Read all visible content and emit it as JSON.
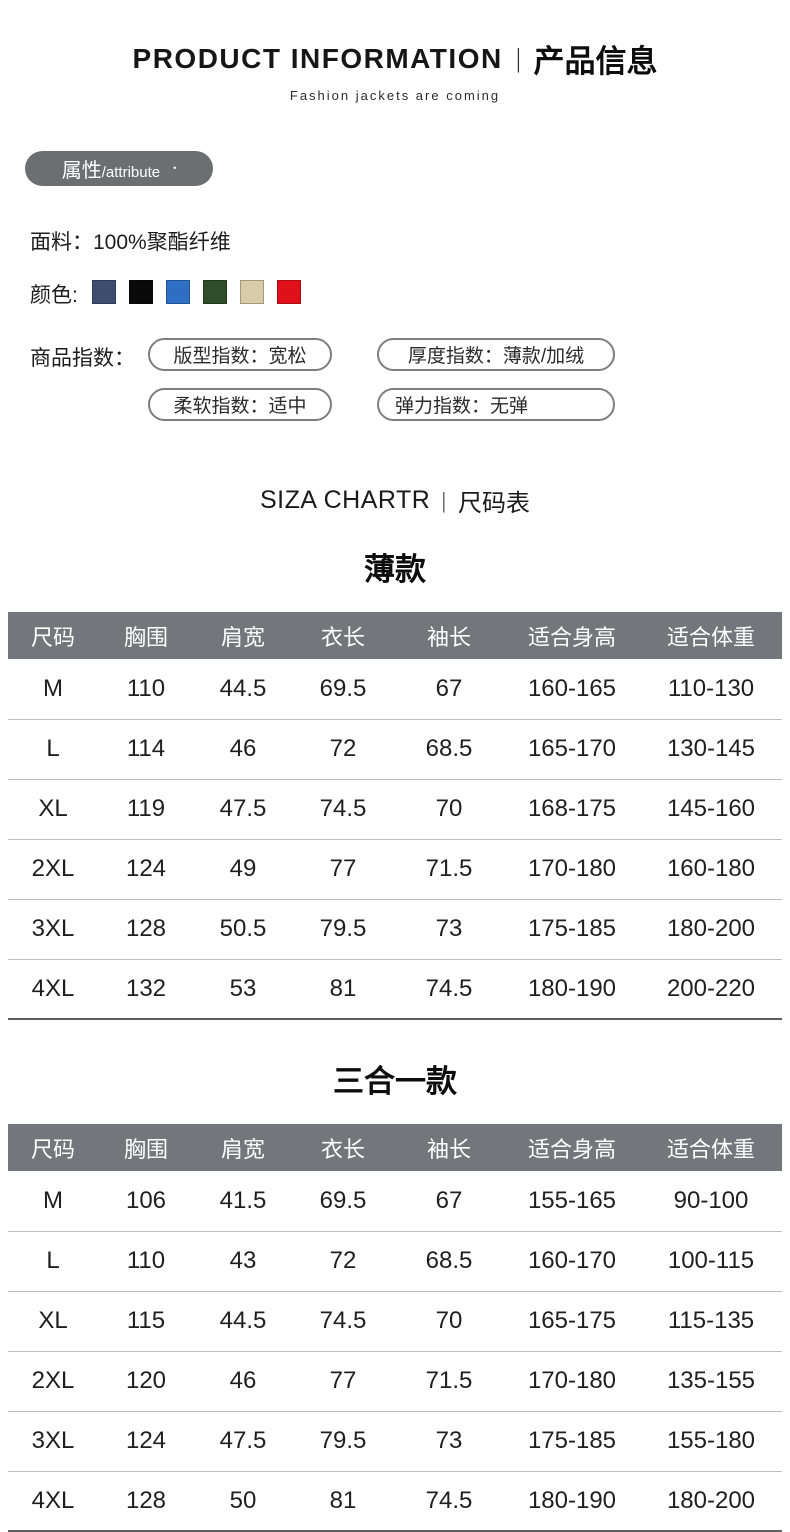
{
  "header": {
    "title_en": "PRODUCT INFORMATION",
    "divider": "|",
    "title_zh": "产品信息",
    "subtitle": "Fashion jackets are coming"
  },
  "attribute_badge": {
    "label_zh": "属性",
    "label_en": "/attribute",
    "dot": "•"
  },
  "fabric": {
    "label": "面料：",
    "value": "100%聚酯纤维"
  },
  "colors": {
    "label": "颜色:",
    "swatches": [
      {
        "name": "navy",
        "hex": "#3e4c70"
      },
      {
        "name": "black",
        "hex": "#0a0a0a"
      },
      {
        "name": "blue",
        "hex": "#2e6fc4"
      },
      {
        "name": "dark-green",
        "hex": "#2e4d28"
      },
      {
        "name": "beige",
        "hex": "#d9cca8"
      },
      {
        "name": "red",
        "hex": "#e0111b"
      }
    ]
  },
  "product_index": {
    "label": "商品指数：",
    "pills": [
      "版型指数：宽松",
      "厚度指数：薄款/加绒",
      "柔软指数：适中",
      "弹力指数：无弹"
    ]
  },
  "size_chart_heading": {
    "title_en": "SIZA CHARTR",
    "divider": "|",
    "title_zh": "尺码表"
  },
  "tables": [
    {
      "title": "薄款",
      "headers": [
        "尺码",
        "胸围",
        "肩宽",
        "衣长",
        "袖长",
        "适合身高",
        "适合体重"
      ],
      "rows": [
        [
          "M",
          "110",
          "44.5",
          "69.5",
          "67",
          "160-165",
          "110-130"
        ],
        [
          "L",
          "114",
          "46",
          "72",
          "68.5",
          "165-170",
          "130-145"
        ],
        [
          "XL",
          "119",
          "47.5",
          "74.5",
          "70",
          "168-175",
          "145-160"
        ],
        [
          "2XL",
          "124",
          "49",
          "77",
          "71.5",
          "170-180",
          "160-180"
        ],
        [
          "3XL",
          "128",
          "50.5",
          "79.5",
          "73",
          "175-185",
          "180-200"
        ],
        [
          "4XL",
          "132",
          "53",
          "81",
          "74.5",
          "180-190",
          "200-220"
        ]
      ]
    },
    {
      "title": "三合一款",
      "headers": [
        "尺码",
        "胸围",
        "肩宽",
        "衣长",
        "袖长",
        "适合身高",
        "适合体重"
      ],
      "rows": [
        [
          "M",
          "106",
          "41.5",
          "69.5",
          "67",
          "155-165",
          "90-100"
        ],
        [
          "L",
          "110",
          "43",
          "72",
          "68.5",
          "160-170",
          "100-115"
        ],
        [
          "XL",
          "115",
          "44.5",
          "74.5",
          "70",
          "165-175",
          "115-135"
        ],
        [
          "2XL",
          "120",
          "46",
          "77",
          "71.5",
          "170-180",
          "135-155"
        ],
        [
          "3XL",
          "124",
          "47.5",
          "79.5",
          "73",
          "175-185",
          "155-180"
        ],
        [
          "4XL",
          "128",
          "50",
          "81",
          "74.5",
          "180-190",
          "180-200"
        ]
      ]
    }
  ],
  "style_colors": {
    "table_header_bar": "#73777b",
    "badge_background": "#6d6e71",
    "row_divider": "#bfbfbf",
    "table_bottom_border": "#5f5f5f"
  }
}
